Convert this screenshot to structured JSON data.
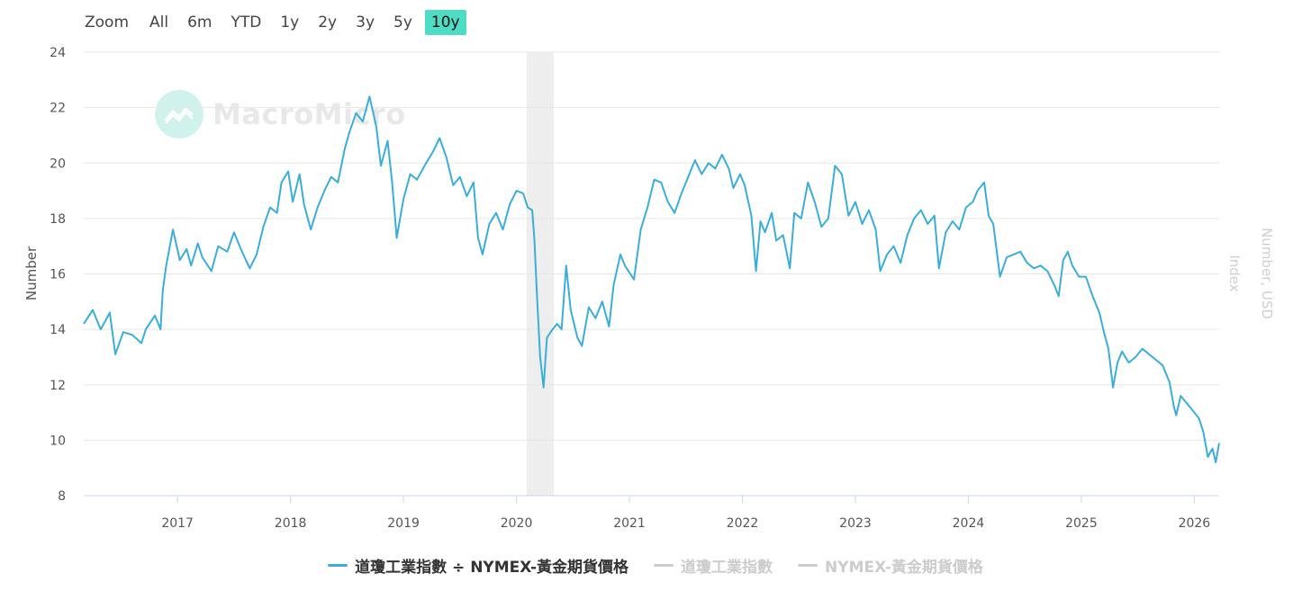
{
  "zoom": {
    "label": "Zoom",
    "buttons": [
      "All",
      "6m",
      "YTD",
      "1y",
      "2y",
      "3y",
      "5y",
      "10y"
    ],
    "active": "10y"
  },
  "watermark": {
    "text": "MacroMicro"
  },
  "colors": {
    "series": "#3aaed8",
    "muted": "#cccccc",
    "active_zoom": "#4fdcc4",
    "recession_band": "#eeeeee"
  },
  "chart_data": {
    "type": "line",
    "ylabel": "Number",
    "ylabel_right": "Number, USD",
    "ylabel_right2": "Index",
    "ylim": [
      8,
      24
    ],
    "yticks": [
      8,
      10,
      12,
      14,
      16,
      18,
      20,
      22,
      24
    ],
    "xlim": [
      2016.17,
      2026.22
    ],
    "xticks": [
      "2017",
      "2018",
      "2019",
      "2020",
      "2021",
      "2022",
      "2023",
      "2024",
      "2025",
      "2026"
    ],
    "shaded_period": {
      "start": 2020.09,
      "end": 2020.33
    },
    "grid": true,
    "legend_position": "bottom-center",
    "series": [
      {
        "name": "道瓊工業指數 ÷ NYMEX-黃金期貨價格",
        "visible": true,
        "points": [
          [
            2016.17,
            14.2
          ],
          [
            2016.25,
            14.7
          ],
          [
            2016.32,
            14.0
          ],
          [
            2016.4,
            14.6
          ],
          [
            2016.45,
            13.1
          ],
          [
            2016.52,
            13.9
          ],
          [
            2016.6,
            13.8
          ],
          [
            2016.68,
            13.5
          ],
          [
            2016.72,
            14.0
          ],
          [
            2016.8,
            14.5
          ],
          [
            2016.85,
            14.0
          ],
          [
            2016.87,
            15.4
          ],
          [
            2016.9,
            16.3
          ],
          [
            2016.96,
            17.6
          ],
          [
            2017.02,
            16.5
          ],
          [
            2017.08,
            16.9
          ],
          [
            2017.12,
            16.3
          ],
          [
            2017.18,
            17.1
          ],
          [
            2017.22,
            16.6
          ],
          [
            2017.3,
            16.1
          ],
          [
            2017.36,
            17.0
          ],
          [
            2017.44,
            16.8
          ],
          [
            2017.5,
            17.5
          ],
          [
            2017.56,
            16.9
          ],
          [
            2017.64,
            16.2
          ],
          [
            2017.7,
            16.7
          ],
          [
            2017.76,
            17.7
          ],
          [
            2017.82,
            18.4
          ],
          [
            2017.88,
            18.2
          ],
          [
            2017.92,
            19.3
          ],
          [
            2017.98,
            19.7
          ],
          [
            2018.02,
            18.6
          ],
          [
            2018.08,
            19.6
          ],
          [
            2018.12,
            18.5
          ],
          [
            2018.18,
            17.6
          ],
          [
            2018.24,
            18.4
          ],
          [
            2018.3,
            19.0
          ],
          [
            2018.36,
            19.5
          ],
          [
            2018.42,
            19.3
          ],
          [
            2018.48,
            20.5
          ],
          [
            2018.52,
            21.1
          ],
          [
            2018.58,
            21.8
          ],
          [
            2018.64,
            21.5
          ],
          [
            2018.7,
            22.4
          ],
          [
            2018.76,
            21.3
          ],
          [
            2018.8,
            19.9
          ],
          [
            2018.86,
            20.8
          ],
          [
            2018.9,
            19.3
          ],
          [
            2018.94,
            17.3
          ],
          [
            2019.0,
            18.7
          ],
          [
            2019.06,
            19.6
          ],
          [
            2019.12,
            19.4
          ],
          [
            2019.2,
            20.0
          ],
          [
            2019.26,
            20.4
          ],
          [
            2019.32,
            20.9
          ],
          [
            2019.38,
            20.2
          ],
          [
            2019.44,
            19.2
          ],
          [
            2019.5,
            19.5
          ],
          [
            2019.56,
            18.8
          ],
          [
            2019.62,
            19.3
          ],
          [
            2019.66,
            17.3
          ],
          [
            2019.7,
            16.7
          ],
          [
            2019.76,
            17.8
          ],
          [
            2019.82,
            18.2
          ],
          [
            2019.88,
            17.6
          ],
          [
            2019.94,
            18.5
          ],
          [
            2020.0,
            19.0
          ],
          [
            2020.06,
            18.9
          ],
          [
            2020.1,
            18.4
          ],
          [
            2020.14,
            18.3
          ],
          [
            2020.16,
            17.2
          ],
          [
            2020.18,
            15.4
          ],
          [
            2020.21,
            13.0
          ],
          [
            2020.24,
            11.9
          ],
          [
            2020.27,
            13.7
          ],
          [
            2020.32,
            14.0
          ],
          [
            2020.36,
            14.2
          ],
          [
            2020.4,
            14.0
          ],
          [
            2020.44,
            16.3
          ],
          [
            2020.48,
            14.7
          ],
          [
            2020.54,
            13.7
          ],
          [
            2020.58,
            13.4
          ],
          [
            2020.64,
            14.8
          ],
          [
            2020.7,
            14.4
          ],
          [
            2020.76,
            15.0
          ],
          [
            2020.82,
            14.1
          ],
          [
            2020.86,
            15.6
          ],
          [
            2020.92,
            16.7
          ],
          [
            2020.96,
            16.3
          ],
          [
            2021.04,
            15.8
          ],
          [
            2021.1,
            17.6
          ],
          [
            2021.16,
            18.4
          ],
          [
            2021.22,
            19.4
          ],
          [
            2021.28,
            19.3
          ],
          [
            2021.34,
            18.6
          ],
          [
            2021.4,
            18.2
          ],
          [
            2021.46,
            18.9
          ],
          [
            2021.52,
            19.5
          ],
          [
            2021.58,
            20.1
          ],
          [
            2021.64,
            19.6
          ],
          [
            2021.7,
            20.0
          ],
          [
            2021.76,
            19.8
          ],
          [
            2021.82,
            20.3
          ],
          [
            2021.88,
            19.8
          ],
          [
            2021.92,
            19.1
          ],
          [
            2021.98,
            19.6
          ],
          [
            2022.02,
            19.2
          ],
          [
            2022.08,
            18.1
          ],
          [
            2022.12,
            16.1
          ],
          [
            2022.16,
            17.9
          ],
          [
            2022.2,
            17.5
          ],
          [
            2022.26,
            18.2
          ],
          [
            2022.3,
            17.2
          ],
          [
            2022.36,
            17.4
          ],
          [
            2022.42,
            16.2
          ],
          [
            2022.46,
            18.2
          ],
          [
            2022.52,
            18.0
          ],
          [
            2022.58,
            19.3
          ],
          [
            2022.64,
            18.6
          ],
          [
            2022.7,
            17.7
          ],
          [
            2022.76,
            18.0
          ],
          [
            2022.82,
            19.9
          ],
          [
            2022.88,
            19.6
          ],
          [
            2022.94,
            18.1
          ],
          [
            2023.0,
            18.6
          ],
          [
            2023.06,
            17.8
          ],
          [
            2023.12,
            18.3
          ],
          [
            2023.18,
            17.6
          ],
          [
            2023.22,
            16.1
          ],
          [
            2023.28,
            16.7
          ],
          [
            2023.34,
            17.0
          ],
          [
            2023.4,
            16.4
          ],
          [
            2023.46,
            17.4
          ],
          [
            2023.52,
            18.0
          ],
          [
            2023.58,
            18.3
          ],
          [
            2023.64,
            17.8
          ],
          [
            2023.7,
            18.1
          ],
          [
            2023.74,
            16.2
          ],
          [
            2023.8,
            17.5
          ],
          [
            2023.86,
            17.9
          ],
          [
            2023.92,
            17.6
          ],
          [
            2023.98,
            18.4
          ],
          [
            2024.04,
            18.6
          ],
          [
            2024.08,
            19.0
          ],
          [
            2024.14,
            19.3
          ],
          [
            2024.18,
            18.1
          ],
          [
            2024.22,
            17.8
          ],
          [
            2024.28,
            15.9
          ],
          [
            2024.34,
            16.6
          ],
          [
            2024.4,
            16.7
          ],
          [
            2024.46,
            16.8
          ],
          [
            2024.52,
            16.4
          ],
          [
            2024.58,
            16.2
          ],
          [
            2024.64,
            16.3
          ],
          [
            2024.7,
            16.1
          ],
          [
            2024.76,
            15.6
          ],
          [
            2024.8,
            15.2
          ],
          [
            2024.84,
            16.5
          ],
          [
            2024.88,
            16.8
          ],
          [
            2024.92,
            16.3
          ],
          [
            2024.98,
            15.9
          ],
          [
            2025.04,
            15.9
          ],
          [
            2025.1,
            15.2
          ],
          [
            2025.16,
            14.6
          ],
          [
            2025.2,
            13.9
          ],
          [
            2025.24,
            13.3
          ],
          [
            2025.28,
            11.9
          ],
          [
            2025.32,
            12.8
          ],
          [
            2025.36,
            13.2
          ],
          [
            2025.42,
            12.8
          ],
          [
            2025.48,
            13.0
          ],
          [
            2025.54,
            13.3
          ],
          [
            2025.6,
            13.1
          ],
          [
            2025.66,
            12.9
          ],
          [
            2025.72,
            12.7
          ],
          [
            2025.78,
            12.1
          ],
          [
            2025.82,
            11.2
          ],
          [
            2025.84,
            10.9
          ],
          [
            2025.88,
            11.6
          ],
          [
            2025.94,
            11.3
          ],
          [
            2026.0,
            11.0
          ],
          [
            2026.04,
            10.8
          ],
          [
            2026.08,
            10.3
          ],
          [
            2026.12,
            9.4
          ],
          [
            2026.16,
            9.7
          ],
          [
            2026.19,
            9.2
          ],
          [
            2026.22,
            9.9
          ]
        ]
      },
      {
        "name": "道瓊工業指數",
        "visible": false
      },
      {
        "name": "NYMEX-黃金期貨價格",
        "visible": false
      }
    ]
  }
}
